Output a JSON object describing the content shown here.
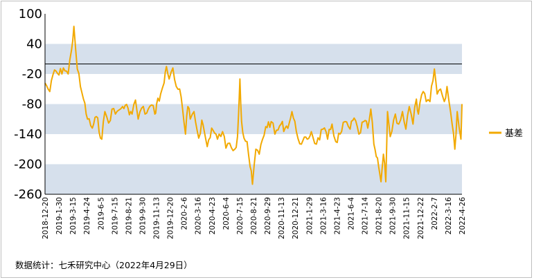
{
  "chart_data": {
    "type": "line",
    "series": [
      {
        "name": "基差",
        "color": "#F2A900",
        "x": [
          "2018-12-20",
          "2019-01-03",
          "2019-01-17",
          "2019-01-30",
          "2019-02-12",
          "2019-02-26",
          "2019-03-08",
          "2019-03-15",
          "2019-03-25",
          "2019-04-03",
          "2019-04-12",
          "2019-04-24",
          "2019-05-08",
          "2019-05-20",
          "2019-06-05",
          "2019-06-14",
          "2019-06-25",
          "2019-07-05",
          "2019-07-15",
          "2019-07-25",
          "2019-08-05",
          "2019-08-21",
          "2019-09-02",
          "2019-09-12",
          "2019-09-20",
          "2019-09-30",
          "2019-10-15",
          "2019-10-29",
          "2019-11-08",
          "2019-11-13",
          "2019-11-25",
          "2019-12-05",
          "2019-12-12",
          "2019-12-20",
          "2019-12-31",
          "2020-01-10",
          "2020-01-20",
          "2020-02-06",
          "2020-02-13",
          "2020-02-20",
          "2020-03-02",
          "2020-03-16",
          "2020-03-25",
          "2020-04-10",
          "2020-04-23",
          "2020-05-10",
          "2020-05-25",
          "2020-06-04",
          "2020-06-15",
          "2020-06-30",
          "2020-07-08",
          "2020-07-15",
          "2020-07-20",
          "2020-07-27",
          "2020-08-05",
          "2020-08-14",
          "2020-08-21",
          "2020-08-31",
          "2020-09-10",
          "2020-09-29",
          "2020-10-15",
          "2020-10-26",
          "2020-11-13",
          "2020-11-25",
          "2020-12-07",
          "2020-12-15",
          "2020-12-28",
          "2021-01-12",
          "2021-01-29",
          "2021-02-10",
          "2021-02-25",
          "2021-03-16",
          "2021-03-30",
          "2021-04-12",
          "2021-04-23",
          "2021-05-10",
          "2021-05-20",
          "2021-06-04",
          "2021-06-16",
          "2021-06-30",
          "2021-07-14",
          "2021-07-26",
          "2021-08-04",
          "2021-08-13",
          "2021-08-20",
          "2021-08-27",
          "2021-09-03",
          "2021-09-10",
          "2021-09-17",
          "2021-09-22",
          "2021-09-30",
          "2021-10-15",
          "2021-10-25",
          "2021-11-05",
          "2021-11-15",
          "2021-11-25",
          "2021-12-06",
          "2021-12-16",
          "2021-12-22",
          "2022-01-05",
          "2022-01-14",
          "2022-01-25",
          "2022-02-07",
          "2022-02-15",
          "2022-02-25",
          "2022-03-08",
          "2022-03-16",
          "2022-03-22",
          "2022-03-31",
          "2022-04-08",
          "2022-04-15",
          "2022-04-26",
          "2022-04-29"
        ],
        "values": [
          -38,
          -55,
          -12,
          -22,
          -8,
          -20,
          28,
          75,
          -10,
          -45,
          -70,
          -110,
          -128,
          -105,
          -150,
          -95,
          -118,
          -90,
          -100,
          -92,
          -85,
          -88,
          -100,
          -72,
          -110,
          -88,
          -98,
          -82,
          -100,
          -80,
          -60,
          -38,
          -5,
          -30,
          -8,
          -45,
          -50,
          -140,
          -85,
          -110,
          -95,
          -148,
          -112,
          -165,
          -128,
          -150,
          -135,
          -168,
          -158,
          -170,
          -145,
          -30,
          -115,
          -148,
          -155,
          -205,
          -240,
          -170,
          -180,
          -125,
          -115,
          -140,
          -120,
          -128,
          -118,
          -95,
          -135,
          -160,
          -150,
          -135,
          -160,
          -130,
          -150,
          -120,
          -155,
          -135,
          -115,
          -130,
          -108,
          -140,
          -115,
          -128,
          -90,
          -160,
          -185,
          -205,
          -235,
          -180,
          -235,
          -95,
          -145,
          -100,
          -120,
          -95,
          -130,
          -85,
          -120,
          -70,
          -100,
          -55,
          -75,
          -75,
          -10,
          -60,
          -50,
          -75,
          -45,
          -75,
          -120,
          -170,
          -95,
          -150,
          -80
        ]
      }
    ],
    "y_ticks": [
      "100",
      "40",
      "-20",
      "-80",
      "-140",
      "-200",
      "-260"
    ],
    "ylim": [
      -260,
      100
    ],
    "x_ticks": [
      "2018-12-20",
      "2019-1-30",
      "2019-3-15",
      "2019-4-24",
      "2019-6-5",
      "2019-7-15",
      "2019-8-21",
      "2019-9-30",
      "2019-11-13",
      "2019-12-20",
      "2020-2-6",
      "2020-3-16",
      "2020-4-23",
      "2020-6-4",
      "2020-7-15",
      "2020-8-21",
      "2020-9-29",
      "2020-11-13",
      "2020-12-21",
      "2021-1-29",
      "2021-3-16",
      "2021-4-23",
      "2021-6-4",
      "2021-7-14",
      "2021-8-20",
      "2021-9-30",
      "2021-11-15",
      "2021-12-22",
      "2022-2-7",
      "2022-3-16",
      "2022-4-26"
    ],
    "reference_line": 0,
    "shaded_bands": [
      [
        -20,
        40
      ],
      [
        -140,
        -80
      ],
      [
        -260,
        -200
      ]
    ],
    "band_color": "#D6E0EC",
    "legend_position": "right",
    "grid": false
  },
  "source_note": "数据统计：七禾研究中心（2022年4月29日）"
}
